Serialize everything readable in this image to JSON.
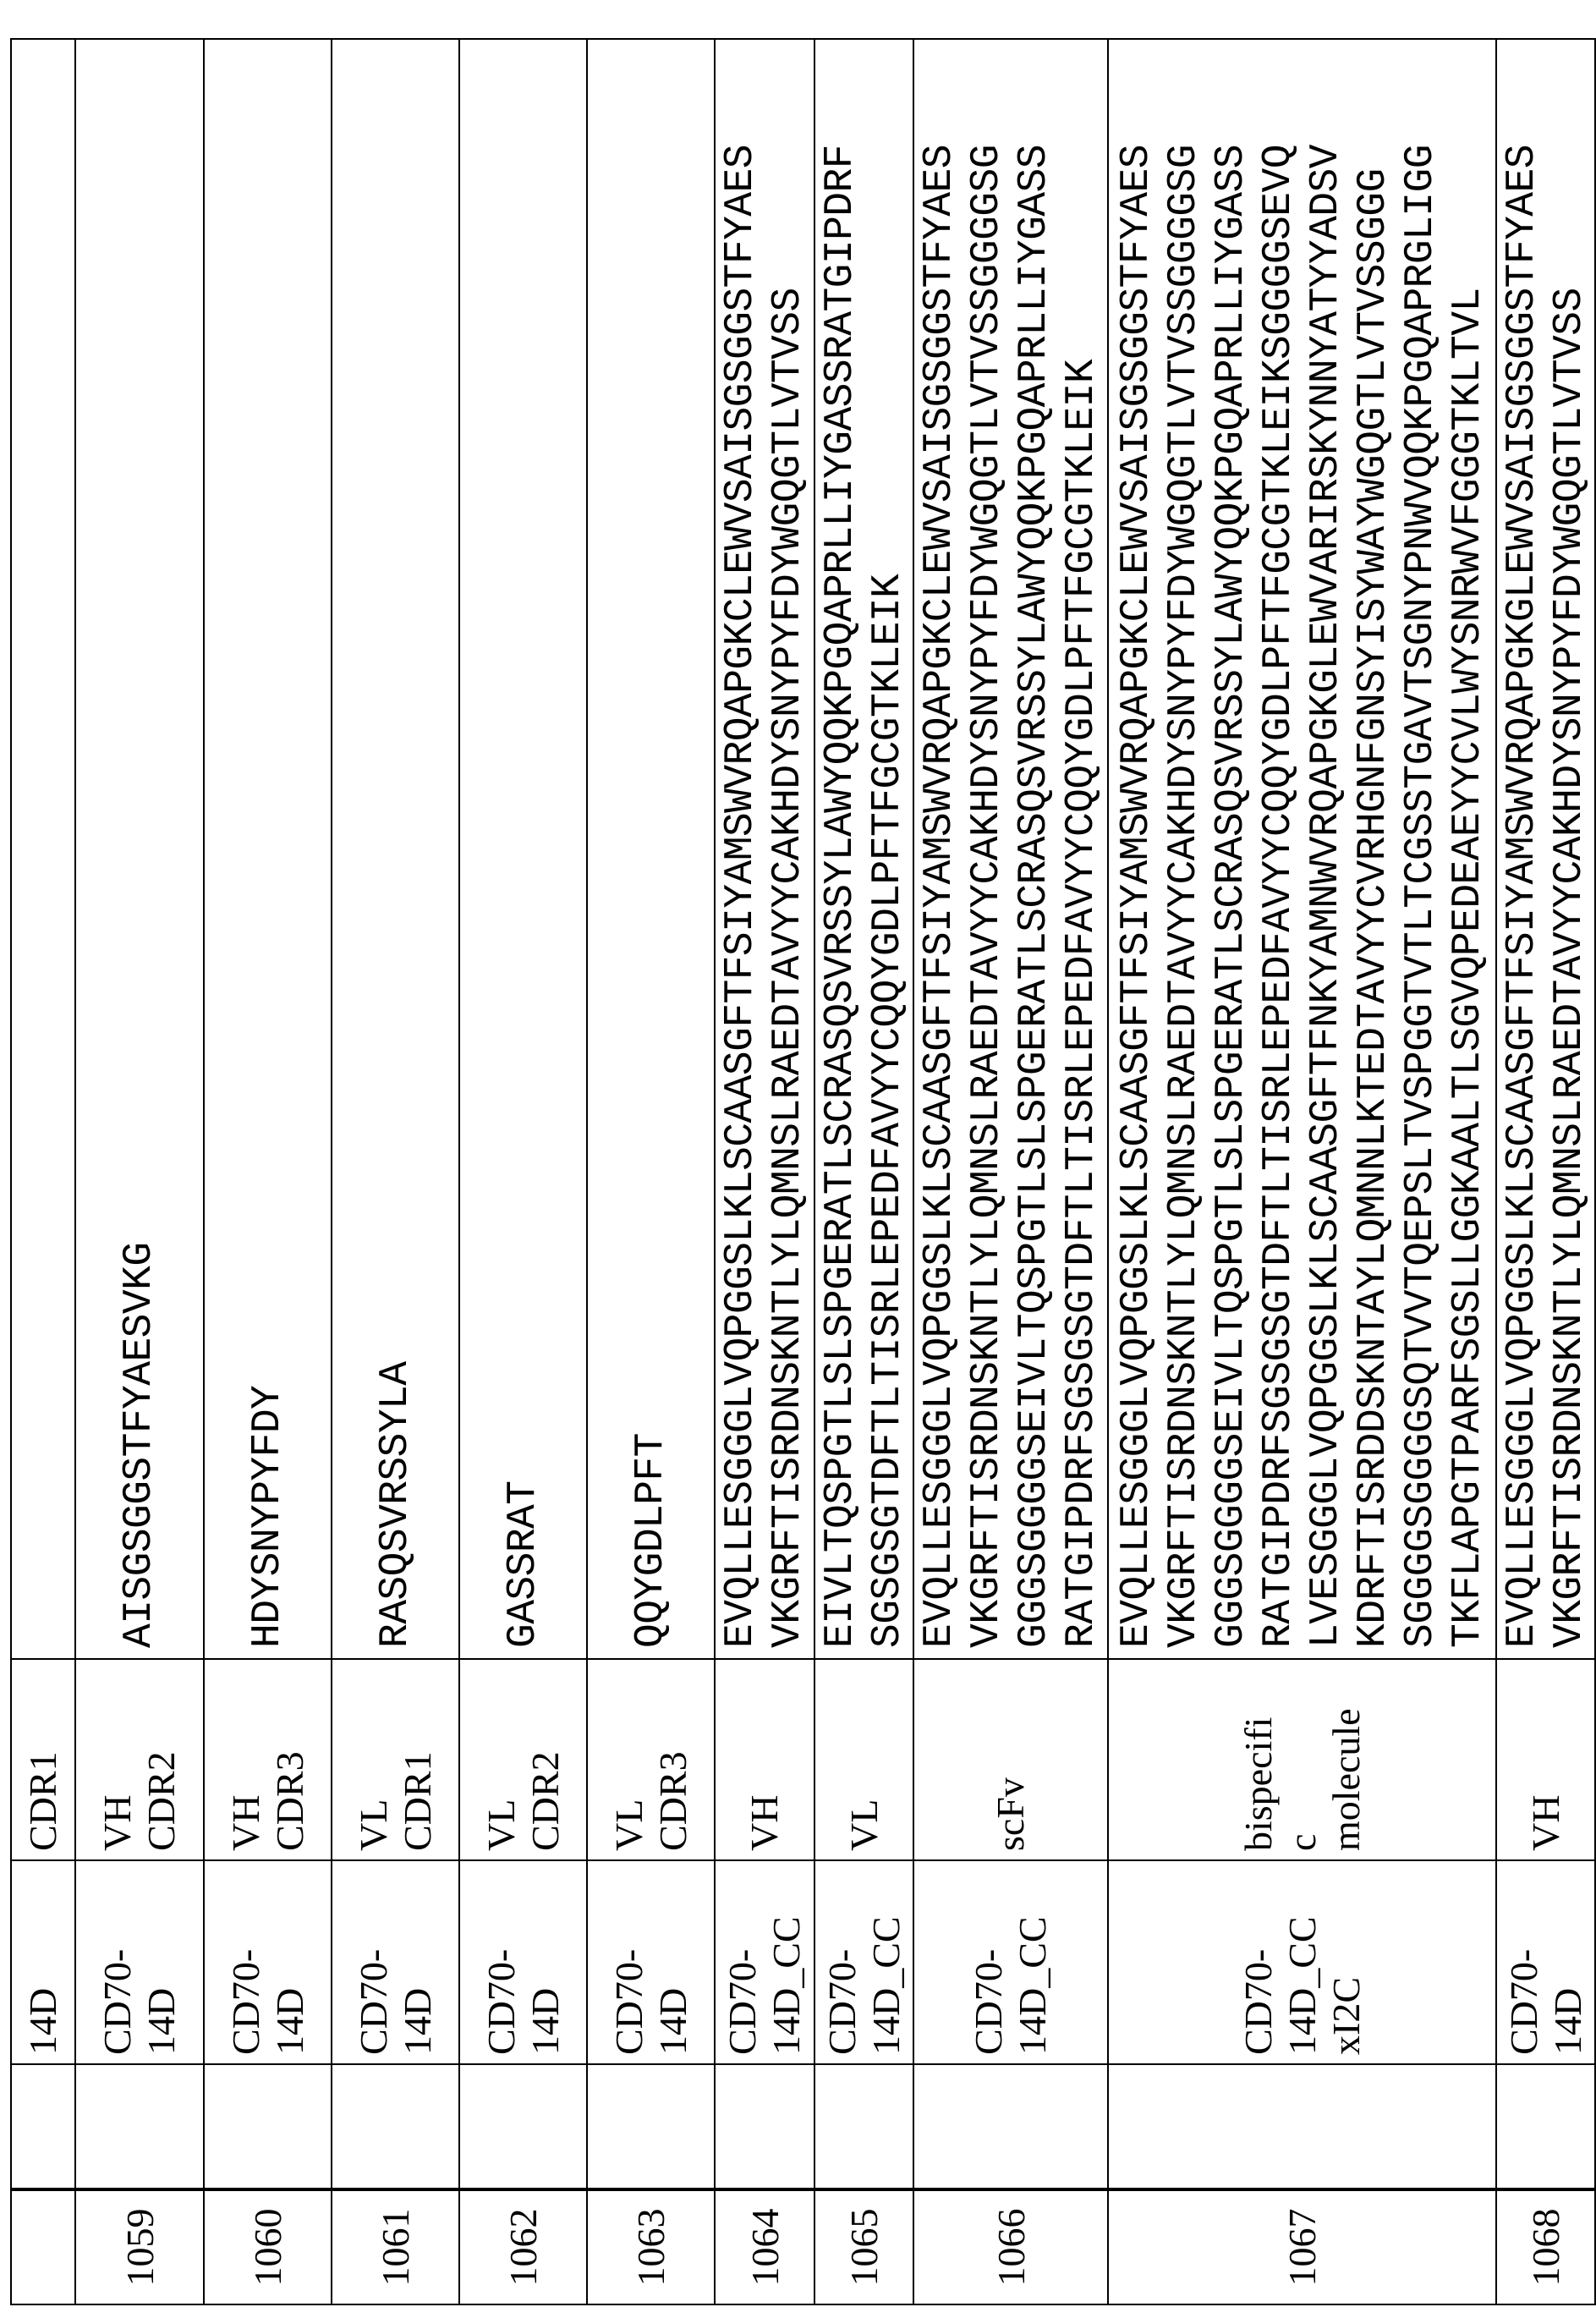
{
  "table": {
    "rows": [
      {
        "seq_id": "",
        "extra": "",
        "name": "14D",
        "type": "CDR1",
        "sequence": []
      },
      {
        "seq_id": "1059",
        "extra": "",
        "name": "CD70-\n14D",
        "type": "VH\nCDR2",
        "sequence": [
          "AISGSGGSTFYAESVKG"
        ]
      },
      {
        "seq_id": "1060",
        "extra": "",
        "name": "CD70-\n14D",
        "type": "VH\nCDR3",
        "sequence": [
          "HDYSNYPYFDY"
        ]
      },
      {
        "seq_id": "1061",
        "extra": "",
        "name": "CD70-\n14D",
        "type": "VL\nCDR1",
        "sequence": [
          "RASQSVRSSYLA"
        ]
      },
      {
        "seq_id": "1062",
        "extra": "",
        "name": "CD70-\n14D",
        "type": "VL\nCDR2",
        "sequence": [
          "GASSRAT"
        ]
      },
      {
        "seq_id": "1063",
        "extra": "",
        "name": "CD70-\n14D",
        "type": "VL\nCDR3",
        "sequence": [
          "QQYGDLPFT"
        ]
      },
      {
        "seq_id": "1064",
        "extra": "",
        "name": "CD70-\n14D_CC",
        "type": "VH",
        "sequence": [
          "EVQLLESGGGLVQPGGSLKLSCAASGFTFSIYAMSWVRQAPGKCLEWVSAISGSGGSTFYAES",
          "VKGRFTISRDNSKNTLYLQMNSLRAEDTAVYYCAKHDYSNYPYFDYWGQGTLVTVSS"
        ]
      },
      {
        "seq_id": "1065",
        "extra": "",
        "name": "CD70-\n14D_CC",
        "type": "VL",
        "sequence": [
          "EIVLTQSPGTLSLSPGERATLSCRASQSVRSSYLAWYQQKPGQAPRLLIYGASSRATGIPDRF",
          "SGSGSGTDFTLTISRLEPEDFAVYYCQQYGDLPFTFGCGTKLEIK"
        ]
      },
      {
        "seq_id": "1066",
        "extra": "",
        "name": "CD70-\n14D_CC",
        "type": "scFv",
        "sequence": [
          "EVQLLESGGGLVQPGGSLKLSCAASGFTFSIYAMSWVRQAPGKCLEWVSAISGSGGSTFYAES",
          "VKGRFTISRDNSKNTLYLQMNSLRAEDTAVYYCAKHDYSNYPYFDYWGQGTLVTVSSGGGGSG",
          "GGGSGGGGSEIVLTQSPGTLSLSPGERATLSCRASQSVRSSYLAWYQQKPGQAPRLLIYGASS",
          "RATGIPDRFSGSGSGTDFTLTISRLEPEDFAVYYCQQYGDLPFTFGCGTKLEIK"
        ]
      },
      {
        "seq_id": "1067",
        "extra": "",
        "name": "CD70-\n14D_CC\nxI2C",
        "type": "bispecifi\nc\nmolecule",
        "sequence": [
          "EVQLLESGGGLVQPGGSLKLSCAASGFTFSIYAMSWVRQAPGKCLEWVSAISGSGGSTFYAES",
          "VKGRFTISRDNSKNTLYLQMNSLRAEDTAVYYCAKHDYSNYPYFDYWGQGTLVTVSSGGGGSG",
          "GGGSGGGGSEIVLTQSPGTLSLSPGERATLSCRASQSVRSSYLAWYQQKPGQAPRLLIYGASS",
          "RATGIPDRFSGSGSGTDFTLTISRLEPEDFAVYYCQQYGDLPFTFGCGTKLEIKSGGGGSEVQ",
          "LVESGGGLVQPGGSLKLSCAASGFTFNKYAMNWVRQAPGKGLEWVARIRSKYNNYATYYADSV",
          "KDRFTISRDDSKNTAYLQMNNLKTEDTAVYYCVRHGNFGNSYISYWAYWGQGTLVTVSSGGG",
          "SGGGGSGGGGSQTVVTQEPSLTVSPGGTVTLTCGSSTGAVTSGNYPNWVQQKPGQAPRGLIGG",
          "TKFLAPGTPARFSGSLLGGKAALTLSGVQPEDEAEYYCVLWYSNRWVFGGGTKLTVL"
        ]
      },
      {
        "seq_id": "1068",
        "extra": "",
        "name": "CD70-\n14D",
        "type": "VH",
        "sequence": [
          "EVQLLESGGGLVQPGGSLKLSCAASGFTFSIYAMSWVRQAPGKGLEWVSAISGSGGSTFYAES",
          "VKGRFTISRDNSKNTLYLQMNSLRAEDTAVYYCAKHDYSNYPYFDYWGQGTLVTVSS"
        ]
      }
    ]
  }
}
